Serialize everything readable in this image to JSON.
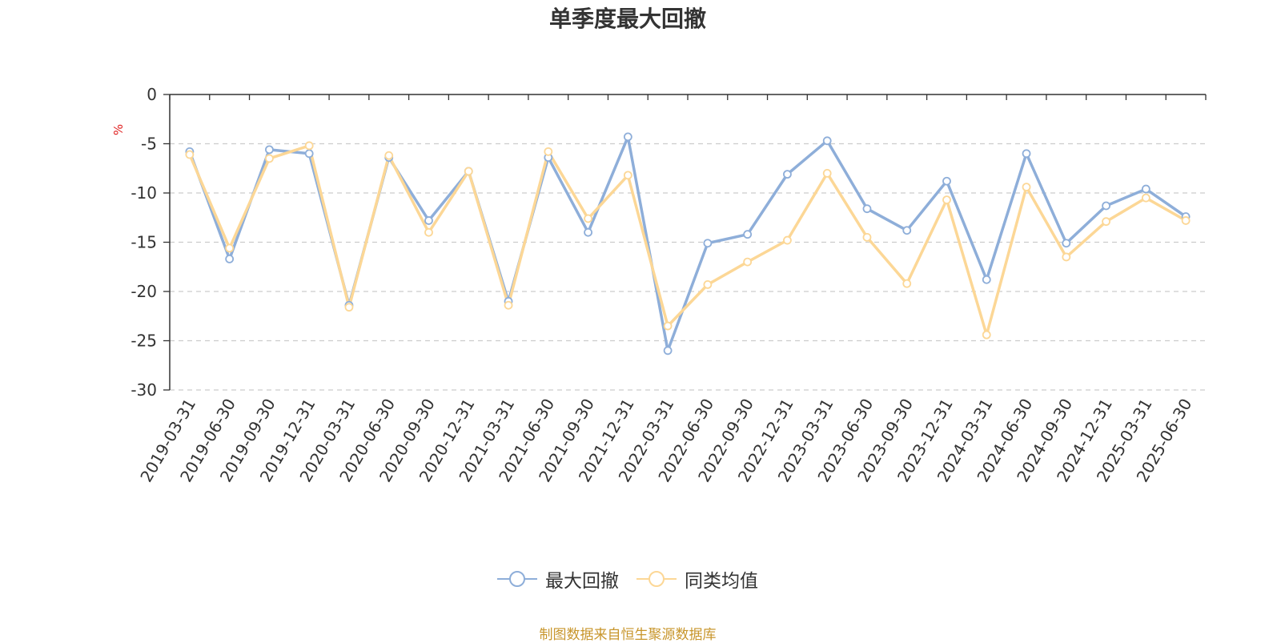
{
  "colors": {
    "series_1": "#8eaed9",
    "series_2": "#fcd796",
    "source_text": "#c8962c",
    "unit_text": "#e02020"
  },
  "chart_data": {
    "type": "line",
    "title": "单季度最大回撤",
    "ylabel": "%",
    "ylim": [
      -30,
      0
    ],
    "yticks": [
      0,
      -5,
      -10,
      -15,
      -20,
      -25,
      -30
    ],
    "ytick_labels": [
      "0",
      "-5",
      "-10",
      "-15",
      "-20",
      "-25",
      "-30"
    ],
    "grid": true,
    "legend_position": "bottom",
    "categories": [
      "2019-03-31",
      "2019-06-30",
      "2019-09-30",
      "2019-12-31",
      "2020-03-31",
      "2020-06-30",
      "2020-09-30",
      "2020-12-31",
      "2021-03-31",
      "2021-06-30",
      "2021-09-30",
      "2021-12-31",
      "2022-03-31",
      "2022-06-30",
      "2022-09-30",
      "2022-12-31",
      "2023-03-31",
      "2023-06-30",
      "2023-09-30",
      "2023-12-31",
      "2024-03-31",
      "2024-06-30",
      "2024-09-30",
      "2024-12-31",
      "2025-03-31",
      "2025-06-30"
    ],
    "series": [
      {
        "name": "最大回撤",
        "values": [
          -5.8,
          -16.7,
          -5.6,
          -6.0,
          -21.4,
          -6.4,
          -12.8,
          -7.8,
          -21.0,
          -6.4,
          -14.0,
          -4.3,
          -26.0,
          -15.1,
          -14.2,
          -8.1,
          -4.7,
          -11.6,
          -13.8,
          -8.8,
          -18.8,
          -6.0,
          -15.1,
          -11.3,
          -9.6,
          -12.4
        ]
      },
      {
        "name": "同类均值",
        "values": [
          -6.1,
          -15.6,
          -6.5,
          -5.2,
          -21.6,
          -6.2,
          -14.0,
          -7.8,
          -21.4,
          -5.8,
          -12.6,
          -8.2,
          -23.5,
          -19.3,
          -17.0,
          -14.8,
          -8.0,
          -14.5,
          -19.2,
          -10.7,
          -24.4,
          -9.4,
          -16.5,
          -12.9,
          -10.5,
          -12.8
        ]
      }
    ]
  },
  "footer": {
    "source": "制图数据来自恒生聚源数据库"
  }
}
